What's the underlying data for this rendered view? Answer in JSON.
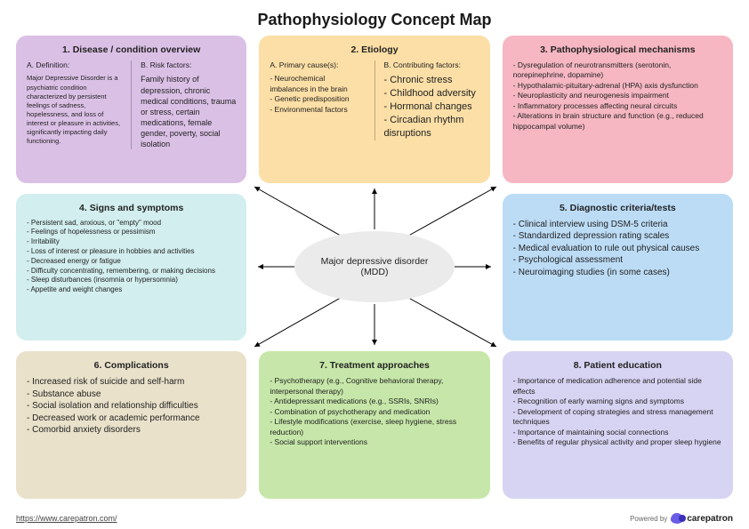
{
  "title": "Pathophysiology Concept Map",
  "center_label": "Major depressive disorder (MDD)",
  "footer": {
    "url": "https://www.carepatron.com/",
    "powered_by": "Powered by",
    "brand": "carepatron"
  },
  "colors": {
    "card1": "#dbc0e6",
    "card2": "#fcdfa6",
    "card3": "#f6b7c2",
    "card4": "#d3eeee",
    "card5": "#bcdcf6",
    "card6": "#e9e1ca",
    "card7": "#c6e7a9",
    "card8": "#d7d3f2",
    "center": "#ebebeb"
  },
  "cards": {
    "c1": {
      "title": "1. Disease / condition overview",
      "colA_title": "A. Definition:",
      "colA_body": "Major Depressive Disorder is a psychiatric condition characterized by persistent feelings of sadness, hopelessness, and loss of interest or pleasure in activities, significantly impacting daily functioning.",
      "colB_title": "B. Risk factors:",
      "colB_body": "Family history of depression, chronic medical conditions, trauma or stress, certain medications, female gender, poverty, social isolation"
    },
    "c2": {
      "title": "2. Etiology",
      "colA_title": "A. Primary cause(s):",
      "colA_items": [
        "Neurochemical imbalances in the brain",
        "Genetic predisposition",
        "Environmental factors"
      ],
      "colB_title": "B. Contributing factors:",
      "colB_items": [
        "Chronic stress",
        "Childhood adversity",
        "Hormonal changes",
        "Circadian rhythm disruptions"
      ]
    },
    "c3": {
      "title": "3. Pathophysiological mechanisms",
      "items": [
        "Dysregulation of neurotransmitters (serotonin, norepinephrine, dopamine)",
        "Hypothalamic-pituitary-adrenal (HPA) axis dysfunction",
        "Neuroplasticity and neurogenesis impairment",
        "Inflammatory processes affecting neural circuits",
        "Alterations in brain structure and function (e.g., reduced hippocampal volume)"
      ]
    },
    "c4": {
      "title": "4. Signs and symptoms",
      "items": [
        "Persistent sad, anxious, or \"empty\" mood",
        "Feelings of hopelessness or pessimism",
        "Irritability",
        "Loss of interest or pleasure in hobbies and activities",
        "Decreased energy or fatigue",
        "Difficulty concentrating, remembering, or making decisions",
        "Sleep disturbances (insomnia or hypersomnia)",
        "Appetite and weight changes"
      ]
    },
    "c5": {
      "title": "5. Diagnostic criteria/tests",
      "items": [
        "Clinical interview using DSM-5 criteria",
        "Standardized depression rating scales",
        "Medical evaluation to rule out physical causes",
        "Psychological assessment",
        "Neuroimaging studies (in some cases)"
      ]
    },
    "c6": {
      "title": "6. Complications",
      "items": [
        "Increased risk of suicide and self-harm",
        "Substance abuse",
        "Social isolation and relationship difficulties",
        "Decreased work or academic performance",
        "Comorbid anxiety disorders"
      ]
    },
    "c7": {
      "title": "7. Treatment approaches",
      "items": [
        "Psychotherapy (e.g., Cognitive behavioral therapy, interpersonal therapy)",
        "Antidepressant medications (e.g., SSRIs, SNRIs)",
        "Combination of psychotherapy and medication",
        "Lifestyle modifications (exercise, sleep hygiene, stress reduction)",
        "Social support interventions"
      ]
    },
    "c8": {
      "title": "8. Patient education",
      "items": [
        "Importance of medication adherence and potential side effects",
        "Recognition of early warning signs and symptoms",
        "Development of coping strategies and stress management techniques",
        "Importance of maintaining social connections",
        "Benefits of regular physical activity and proper sleep hygiene"
      ]
    }
  }
}
